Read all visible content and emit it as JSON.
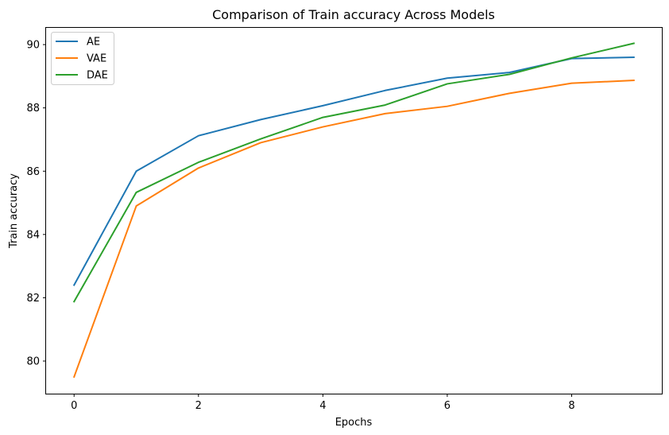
{
  "chart_data": {
    "type": "line",
    "title": "Comparison of Train accuracy Across Models",
    "xlabel": "Epochs",
    "ylabel": "Train accuracy",
    "x": [
      0,
      1,
      2,
      3,
      4,
      5,
      6,
      7,
      8,
      9
    ],
    "xlim": [
      -0.45,
      9.45
    ],
    "ylim": [
      78.97,
      90.53
    ],
    "xticks": [
      0,
      2,
      4,
      6,
      8
    ],
    "yticks": [
      80,
      82,
      84,
      86,
      88,
      90
    ],
    "grid": false,
    "legend_position": "upper left",
    "series": [
      {
        "name": "AE",
        "color": "#1f77b4",
        "values": [
          82.4,
          86.0,
          87.12,
          87.63,
          88.07,
          88.55,
          88.94,
          89.12,
          89.56,
          89.6
        ]
      },
      {
        "name": "VAE",
        "color": "#ff7f0e",
        "values": [
          79.5,
          84.9,
          86.1,
          86.9,
          87.4,
          87.82,
          88.05,
          88.46,
          88.78,
          88.87
        ]
      },
      {
        "name": "DAE",
        "color": "#2ca02c",
        "values": [
          81.88,
          85.33,
          86.28,
          87.02,
          87.7,
          88.09,
          88.76,
          89.06,
          89.58,
          90.04
        ]
      }
    ]
  }
}
